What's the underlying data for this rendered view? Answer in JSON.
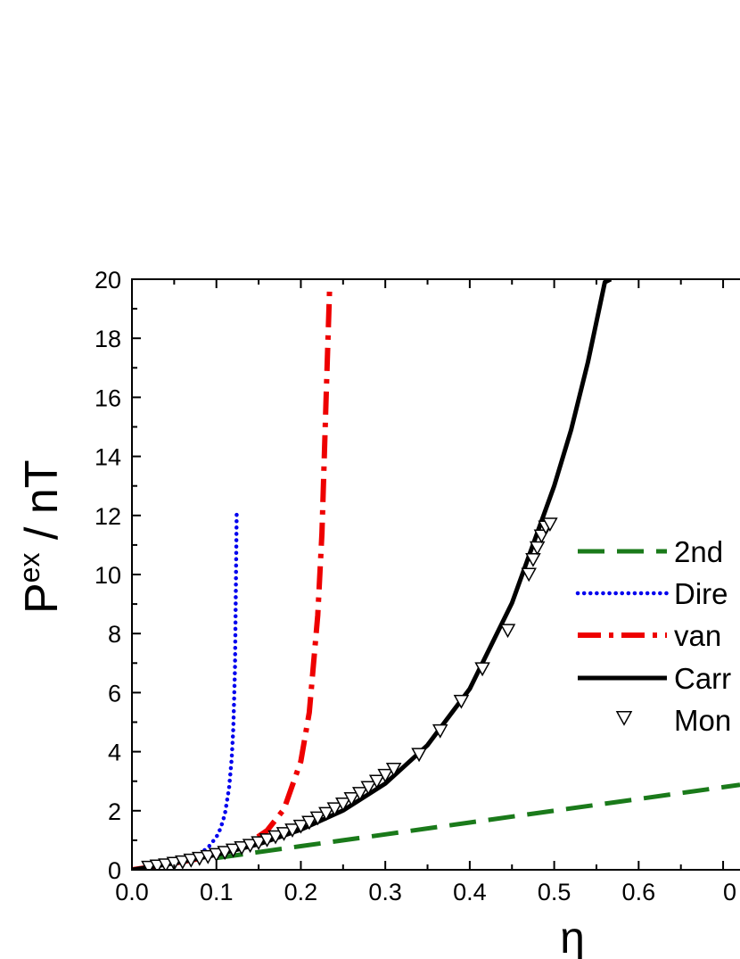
{
  "chart_data": {
    "type": "line",
    "title": "",
    "xlabel": "η",
    "ylabel": {
      "base": "P",
      "sup": "ex",
      "rest": " / nT"
    },
    "xlim": [
      0.0,
      0.72
    ],
    "ylim": [
      0,
      20
    ],
    "xticks": [
      "0.0",
      "0.1",
      "0.2",
      "0.3",
      "0.4",
      "0.5",
      "0.6",
      "0"
    ],
    "yticks": [
      "0",
      "2",
      "4",
      "6",
      "8",
      "10",
      "12",
      "14",
      "16",
      "18",
      "20"
    ],
    "grid": false,
    "legend_position": "right",
    "series": [
      {
        "name": "2nd",
        "style": "dashed",
        "color": "#1a7a1a",
        "x": [
          0.1,
          0.2,
          0.3,
          0.4,
          0.5,
          0.6,
          0.72
        ],
        "y": [
          0.4,
          0.8,
          1.2,
          1.6,
          2.0,
          2.4,
          2.88
        ]
      },
      {
        "name": "Dire",
        "style": "dotted",
        "color": "#0000ee",
        "x": [
          0.0,
          0.02,
          0.04,
          0.06,
          0.08,
          0.09,
          0.1,
          0.105,
          0.11,
          0.115,
          0.118,
          0.12,
          0.122,
          0.124
        ],
        "y": [
          0.0,
          0.09,
          0.18,
          0.31,
          0.54,
          0.75,
          1.11,
          1.41,
          1.88,
          2.76,
          3.73,
          4.8,
          6.88,
          12.2
        ]
      },
      {
        "name": "van",
        "style": "dashdot",
        "color": "#ee0000",
        "x": [
          0.0,
          0.04,
          0.08,
          0.12,
          0.14,
          0.16,
          0.18,
          0.2,
          0.21,
          0.22,
          0.225,
          0.23,
          0.234,
          0.237
        ],
        "y": [
          0.0,
          0.17,
          0.38,
          0.71,
          0.94,
          1.33,
          2.05,
          3.67,
          5.33,
          8.62,
          11.4,
          16.1,
          19.6,
          19.6
        ]
      },
      {
        "name": "Carr",
        "style": "solid",
        "color": "#000000",
        "x": [
          0.0,
          0.05,
          0.1,
          0.15,
          0.2,
          0.25,
          0.3,
          0.35,
          0.4,
          0.45,
          0.5,
          0.52,
          0.54,
          0.56,
          0.567
        ],
        "y": [
          0.0,
          0.22,
          0.51,
          0.87,
          1.36,
          2.01,
          2.92,
          4.22,
          6.13,
          9.04,
          13.0,
          14.9,
          17.2,
          19.9,
          20.0
        ]
      },
      {
        "name": "Mon",
        "style": "marker",
        "color": "#000000",
        "x": [
          0.02,
          0.03,
          0.04,
          0.05,
          0.06,
          0.07,
          0.08,
          0.09,
          0.1,
          0.11,
          0.12,
          0.13,
          0.14,
          0.15,
          0.16,
          0.17,
          0.18,
          0.19,
          0.2,
          0.21,
          0.22,
          0.23,
          0.24,
          0.25,
          0.26,
          0.27,
          0.28,
          0.29,
          0.3,
          0.31,
          0.34,
          0.365,
          0.39,
          0.415,
          0.445,
          0.47,
          0.475,
          0.48,
          0.485,
          0.49,
          0.495
        ],
        "y": [
          0.08,
          0.12,
          0.16,
          0.21,
          0.26,
          0.32,
          0.38,
          0.44,
          0.51,
          0.58,
          0.66,
          0.74,
          0.82,
          0.91,
          1.01,
          1.11,
          1.22,
          1.34,
          1.47,
          1.6,
          1.75,
          1.9,
          2.06,
          2.22,
          2.4,
          2.58,
          2.78,
          2.99,
          3.19,
          3.4,
          3.9,
          4.7,
          5.7,
          6.8,
          8.1,
          10.0,
          10.5,
          10.9,
          11.3,
          11.6,
          11.7
        ]
      }
    ]
  }
}
